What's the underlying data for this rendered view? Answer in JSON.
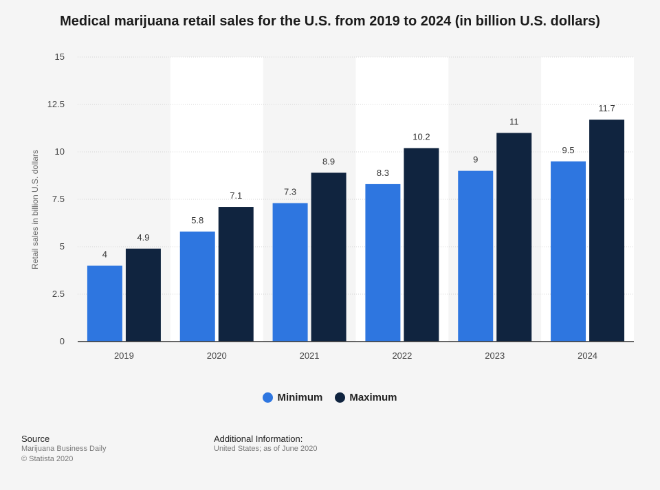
{
  "chart_data": {
    "type": "bar",
    "title": "Medical marijuana retail sales for the U.S. from 2019 to 2024 (in billion U.S. dollars)",
    "xlabel": "",
    "ylabel": "Retail sales in billion U.S. dollars",
    "categories": [
      "2019",
      "2020",
      "2021",
      "2022",
      "2023",
      "2024"
    ],
    "series": [
      {
        "name": "Minimum",
        "values": [
          4,
          5.8,
          7.3,
          8.3,
          9,
          9.5
        ],
        "color": "#2e76e0"
      },
      {
        "name": "Maximum",
        "values": [
          4.9,
          7.1,
          8.9,
          10.2,
          11,
          11.7
        ],
        "color": "#10243f"
      }
    ],
    "ylim": [
      0,
      15
    ],
    "yticks": [
      "0",
      "2.5",
      "5",
      "7.5",
      "10",
      "12.5",
      "15"
    ],
    "grid": true,
    "legend_position": "bottom-center"
  },
  "footer": {
    "source_heading": "Source",
    "source_lines": [
      "Marijuana Business Daily",
      "© Statista 2020"
    ],
    "info_heading": "Additional Information:",
    "info_lines": [
      "United States; as of June 2020"
    ]
  }
}
